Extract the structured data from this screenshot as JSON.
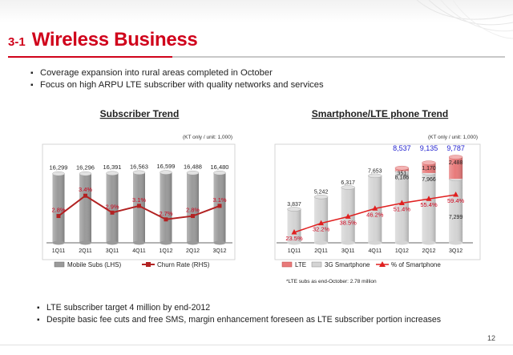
{
  "section": {
    "number": "3-1",
    "title": "Wireless Business"
  },
  "bullets": [
    "Coverage expansion into rural areas completed in October",
    "Focus on high ARPU LTE subscriber with quality networks and services"
  ],
  "footer_bullets": [
    "LTE subscriber target 4 million by end-2012",
    "Despite basic fee cuts and free SMS, margin enhancement foreseen as LTE subscriber portion increases"
  ],
  "page_number": "12",
  "colors": {
    "accent": "#d0021b",
    "bar": "#9a9a9a",
    "lte": "#e87a7a",
    "total": "#1f1fcf"
  },
  "chart_data": [
    {
      "type": "bar",
      "title": "Subscriber Trend",
      "unit_note": "(KT only / unit: 1,000)",
      "categories": [
        "1Q11",
        "2Q11",
        "3Q11",
        "4Q11",
        "1Q12",
        "2Q12",
        "3Q12"
      ],
      "series": [
        {
          "name": "Mobile Subs (LHS)",
          "type": "bar",
          "values": [
            16299,
            16296,
            16391,
            16563,
            16599,
            16488,
            16480
          ],
          "labels": [
            "16,299",
            "16,296",
            "16,391",
            "16,563",
            "16,599",
            "16,488",
            "16,480"
          ]
        },
        {
          "name": "Churn Rate (RHS)",
          "type": "line",
          "values": [
            2.8,
            3.4,
            2.9,
            3.1,
            2.7,
            2.8,
            3.1
          ],
          "labels": [
            "2.8%",
            "3.4%",
            "2.9%",
            "3.1%",
            "2.7%",
            "2.8%",
            "3.1%"
          ]
        }
      ],
      "ylim": [
        0,
        18500
      ],
      "y2lim": [
        0,
        5
      ]
    },
    {
      "type": "bar",
      "stacked": true,
      "title": "Smartphone/LTE phone Trend",
      "unit_note": "(KT only / unit: 1,000)",
      "categories": [
        "1Q11",
        "2Q11",
        "3Q11",
        "4Q11",
        "1Q12",
        "2Q12",
        "3Q12"
      ],
      "series": [
        {
          "name": "3G Smartphone",
          "values": [
            3837,
            5242,
            6317,
            7653,
            8186,
            7966,
            7299
          ],
          "labels": [
            "3,837",
            "5,242",
            "6,317",
            "7,653",
            "8,186",
            "7,966",
            "7,299"
          ]
        },
        {
          "name": "LTE",
          "values": [
            0,
            0,
            0,
            0,
            351,
            1170,
            2488
          ],
          "labels": [
            "",
            "",
            "",
            "",
            "351",
            "1,170",
            "2,488"
          ]
        },
        {
          "name": "% of Smartphone",
          "type": "line",
          "values": [
            23.5,
            32.2,
            38.5,
            46.2,
            51.4,
            55.4,
            59.4
          ],
          "labels": [
            "23.5%",
            "32.2%",
            "38.5%",
            "46.2%",
            "51.4%",
            "55.4%",
            "59.4%"
          ]
        }
      ],
      "totals": [
        "",
        "",
        "",
        "",
        "8,537",
        "9,135",
        "9,787"
      ],
      "ylim": [
        0,
        10500
      ],
      "y2lim": [
        0,
        70
      ],
      "annotation": "*LTE subs as end-October: 2.78 million"
    }
  ]
}
